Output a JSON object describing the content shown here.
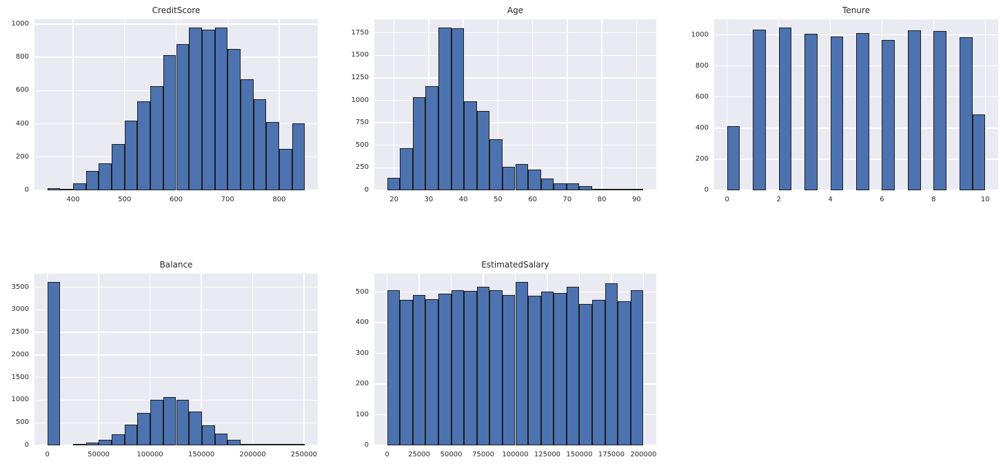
{
  "figure": {
    "background": "#ffffff"
  },
  "style": {
    "axes_background": "#eaeaf2",
    "grid_color": "#ffffff",
    "bar_fill": "#4c72b0",
    "bar_edge": "#1c1c1c",
    "text_color": "#262626"
  },
  "chart_data": [
    {
      "type": "histogram",
      "title": "CreditScore",
      "bins": 20,
      "bin_start": 350,
      "bin_width": 25,
      "counts": [
        14,
        2,
        40,
        115,
        160,
        280,
        418,
        535,
        625,
        812,
        878,
        980,
        968,
        980,
        852,
        668,
        548,
        410,
        250,
        404
      ],
      "xticks": [
        400,
        500,
        600,
        700,
        800
      ],
      "yticks": [
        0,
        200,
        400,
        600,
        800,
        1000
      ],
      "xlim": [
        325,
        875
      ],
      "ylim": [
        0,
        1029
      ],
      "grid": true,
      "legend": "none"
    },
    {
      "type": "histogram",
      "title": "Age",
      "bins": 20,
      "bin_start": 18,
      "bin_width": 3.7,
      "counts": [
        140,
        470,
        1035,
        1155,
        1810,
        1800,
        990,
        885,
        570,
        260,
        295,
        230,
        130,
        75,
        75,
        48,
        13,
        7,
        3,
        2
      ],
      "xticks": [
        20,
        30,
        40,
        50,
        60,
        70,
        80,
        90
      ],
      "yticks": [
        0,
        250,
        500,
        750,
        1000,
        1250,
        1500,
        1750
      ],
      "xlim": [
        14.3,
        95.7
      ],
      "ylim": [
        0,
        1901
      ],
      "grid": true,
      "legend": "none"
    },
    {
      "type": "histogram",
      "title": "Tenure",
      "bins": 20,
      "bin_start": 0,
      "bin_width": 0.5,
      "counts": [
        413,
        0,
        1035,
        0,
        1048,
        0,
        1009,
        0,
        989,
        0,
        1012,
        0,
        967,
        0,
        1028,
        0,
        1025,
        0,
        984,
        490
      ],
      "xticks": [
        0,
        2,
        4,
        6,
        8,
        10
      ],
      "yticks": [
        0,
        200,
        400,
        600,
        800,
        1000
      ],
      "xlim": [
        -0.5,
        10.5
      ],
      "ylim": [
        0,
        1100
      ],
      "grid": true,
      "legend": "none"
    },
    {
      "type": "histogram",
      "title": "Balance",
      "bins": 20,
      "bin_start": 0,
      "bin_width": 12545,
      "counts": [
        3617,
        0,
        14,
        60,
        125,
        245,
        460,
        720,
        1000,
        1075,
        1000,
        755,
        445,
        265,
        125,
        38,
        20,
        5,
        2,
        1
      ],
      "xticks": [
        0,
        50000,
        100000,
        150000,
        200000,
        250000
      ],
      "yticks": [
        0,
        500,
        1000,
        1500,
        2000,
        2500,
        3000,
        3500
      ],
      "xlim": [
        -12545,
        263443
      ],
      "ylim": [
        0,
        3798
      ],
      "grid": true,
      "legend": "none"
    },
    {
      "type": "histogram",
      "title": "EstimatedSalary",
      "bins": 20,
      "bin_start": 0,
      "bin_width": 10000,
      "counts": [
        505,
        474,
        490,
        476,
        495,
        506,
        503,
        518,
        505,
        490,
        532,
        489,
        501,
        498,
        518,
        460,
        474,
        529,
        471,
        505
      ],
      "xticks": [
        0,
        25000,
        50000,
        75000,
        100000,
        125000,
        150000,
        175000,
        200000
      ],
      "yticks": [
        0,
        100,
        200,
        300,
        400,
        500
      ],
      "xlim": [
        -9990,
        209990
      ],
      "ylim": [
        0,
        560
      ],
      "grid": true,
      "legend": "none"
    }
  ]
}
